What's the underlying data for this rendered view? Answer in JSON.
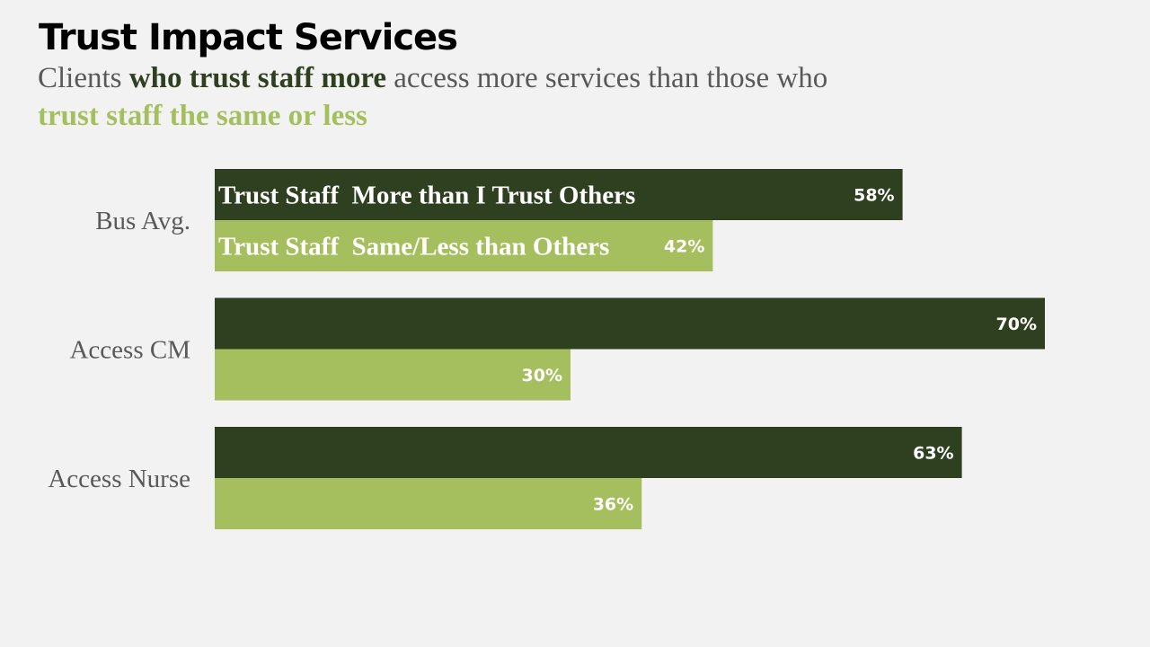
{
  "slide": {
    "title": "Trust Impact Services",
    "subtitle": {
      "part1": "Clients ",
      "part2": "who trust staff more",
      "part3": " access more services than those who ",
      "part4": "trust staff the same or less"
    }
  },
  "colors": {
    "background": "#f2f2f2",
    "dark_green": "#2e4020",
    "light_green": "#a6bf5e",
    "text_gray": "#595959"
  },
  "chart_data": {
    "type": "bar",
    "orientation": "horizontal",
    "categories": [
      "Bus Avg.",
      "Access CM",
      "Access Nurse"
    ],
    "series": [
      {
        "name": "Trust Staff  More than I Trust Others",
        "values": [
          58,
          70,
          63
        ],
        "labels": [
          "58%",
          "70%",
          "63%"
        ],
        "color": "#2e4020"
      },
      {
        "name": "Trust Staff  Same/Less than Others",
        "values": [
          42,
          30,
          36
        ],
        "labels": [
          "42%",
          "30%",
          "36%"
        ],
        "color": "#a6bf5e"
      }
    ],
    "xlim": [
      0,
      100
    ],
    "grid": false,
    "legend": "inside first category bars"
  }
}
